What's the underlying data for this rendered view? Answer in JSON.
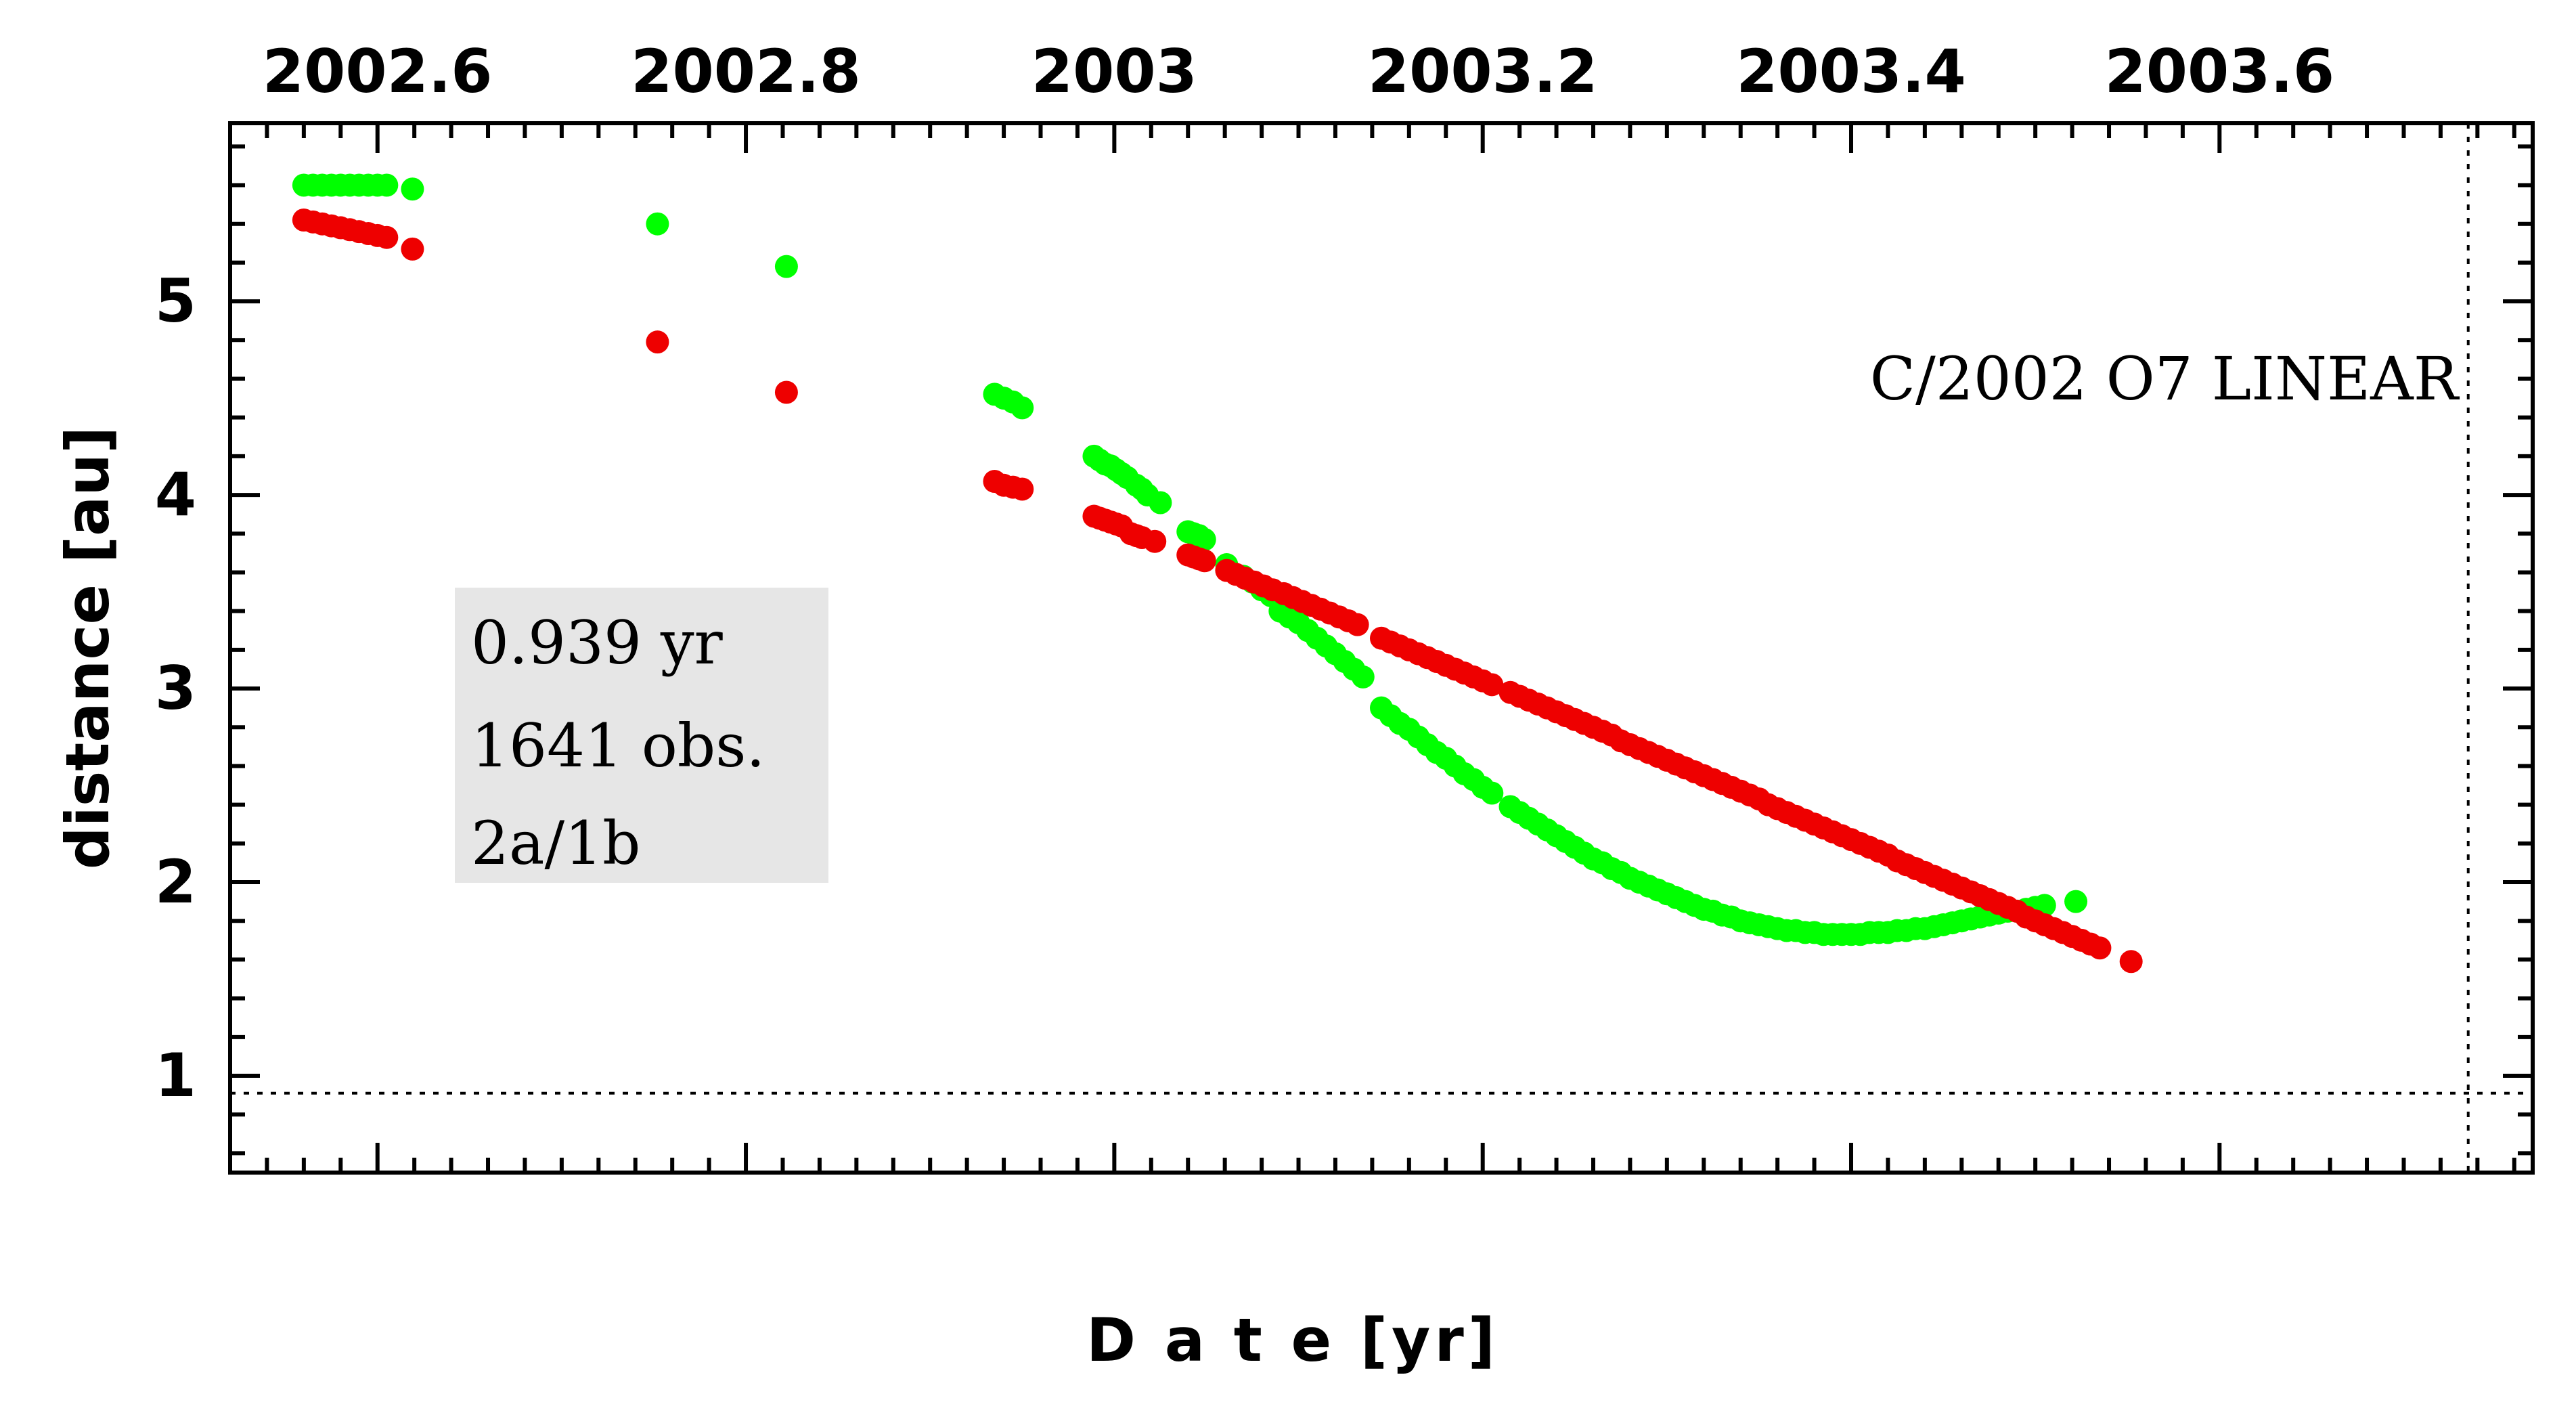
{
  "chart_data": {
    "type": "scatter",
    "title": "C/2002 O7 LINEAR",
    "xlabel": "D a t e [yr]",
    "ylabel": "distance [au]",
    "xlim": [
      2002.52,
      2003.77
    ],
    "ylim": [
      0.5,
      5.92
    ],
    "x_ticks": [
      "2002.6",
      "2002.8",
      "2003",
      "2003.2",
      "2003.4",
      "2003.6"
    ],
    "y_ticks": [
      "1",
      "2",
      "3",
      "4",
      "5"
    ],
    "x_tick_values": [
      2002.6,
      2002.8,
      2003.0,
      2003.2,
      2003.4,
      2003.6
    ],
    "y_tick_values": [
      1,
      2,
      3,
      4,
      5
    ],
    "reference_lines": {
      "horizontal_y": 0.91,
      "vertical_x": 2003.735
    },
    "info_box": {
      "lines": [
        "0.939 yr",
        "1641 obs.",
        "2a/1b"
      ]
    },
    "colors": {
      "green": "#00ff00",
      "red": "#ee0000",
      "box": "#e6e6e6"
    },
    "series": [
      {
        "name": "green",
        "points": [
          [
            2002.56,
            5.6
          ],
          [
            2002.565,
            5.6
          ],
          [
            2002.57,
            5.6
          ],
          [
            2002.575,
            5.6
          ],
          [
            2002.58,
            5.6
          ],
          [
            2002.585,
            5.6
          ],
          [
            2002.59,
            5.6
          ],
          [
            2002.595,
            5.6
          ],
          [
            2002.6,
            5.6
          ],
          [
            2002.605,
            5.6
          ],
          [
            2002.619,
            5.58
          ],
          [
            2002.752,
            5.4
          ],
          [
            2002.822,
            5.18
          ],
          [
            2002.935,
            4.52
          ],
          [
            2002.94,
            4.5
          ],
          [
            2002.945,
            4.48
          ],
          [
            2002.95,
            4.45
          ],
          [
            2002.989,
            4.2
          ],
          [
            2002.992,
            4.18
          ],
          [
            2002.995,
            4.16
          ],
          [
            2002.998,
            4.15
          ],
          [
            2003.001,
            4.13
          ],
          [
            2003.004,
            4.11
          ],
          [
            2003.007,
            4.09
          ],
          [
            2003.012,
            4.05
          ],
          [
            2003.015,
            4.03
          ],
          [
            2003.018,
            4.0
          ],
          [
            2003.025,
            3.96
          ],
          [
            2003.04,
            3.81
          ],
          [
            2003.043,
            3.8
          ],
          [
            2003.046,
            3.79
          ],
          [
            2003.049,
            3.77
          ],
          [
            2003.061,
            3.64
          ],
          [
            2003.07,
            3.58
          ],
          [
            2003.075,
            3.55
          ],
          [
            2003.08,
            3.51
          ],
          [
            2003.085,
            3.48
          ],
          [
            2003.09,
            3.4
          ],
          [
            2003.095,
            3.37
          ],
          [
            2003.1,
            3.34
          ],
          [
            2003.105,
            3.3
          ],
          [
            2003.11,
            3.26
          ],
          [
            2003.115,
            3.22
          ],
          [
            2003.12,
            3.18
          ],
          [
            2003.125,
            3.14
          ],
          [
            2003.13,
            3.1
          ],
          [
            2003.135,
            3.06
          ],
          [
            2003.145,
            2.9
          ],
          [
            2003.15,
            2.86
          ],
          [
            2003.155,
            2.82
          ],
          [
            2003.16,
            2.79
          ],
          [
            2003.165,
            2.75
          ],
          [
            2003.17,
            2.71
          ],
          [
            2003.175,
            2.67
          ],
          [
            2003.18,
            2.64
          ],
          [
            2003.185,
            2.6
          ],
          [
            2003.19,
            2.56
          ],
          [
            2003.195,
            2.53
          ],
          [
            2003.2,
            2.49
          ],
          [
            2003.205,
            2.46
          ],
          [
            2003.215,
            2.39
          ],
          [
            2003.22,
            2.36
          ],
          [
            2003.225,
            2.33
          ],
          [
            2003.23,
            2.3
          ],
          [
            2003.235,
            2.27
          ],
          [
            2003.24,
            2.24
          ],
          [
            2003.245,
            2.21
          ],
          [
            2003.25,
            2.18
          ],
          [
            2003.255,
            2.15
          ],
          [
            2003.26,
            2.12
          ],
          [
            2003.265,
            2.1
          ],
          [
            2003.27,
            2.07
          ],
          [
            2003.275,
            2.05
          ],
          [
            2003.28,
            2.02
          ],
          [
            2003.285,
            2.0
          ],
          [
            2003.29,
            1.98
          ],
          [
            2003.295,
            1.96
          ],
          [
            2003.3,
            1.94
          ],
          [
            2003.305,
            1.92
          ],
          [
            2003.31,
            1.9
          ],
          [
            2003.315,
            1.88
          ],
          [
            2003.32,
            1.86
          ],
          [
            2003.325,
            1.85
          ],
          [
            2003.33,
            1.83
          ],
          [
            2003.335,
            1.82
          ],
          [
            2003.34,
            1.8
          ],
          [
            2003.345,
            1.79
          ],
          [
            2003.35,
            1.78
          ],
          [
            2003.355,
            1.77
          ],
          [
            2003.36,
            1.76
          ],
          [
            2003.365,
            1.75
          ],
          [
            2003.37,
            1.75
          ],
          [
            2003.375,
            1.74
          ],
          [
            2003.38,
            1.74
          ],
          [
            2003.385,
            1.73
          ],
          [
            2003.39,
            1.73
          ],
          [
            2003.395,
            1.73
          ],
          [
            2003.4,
            1.73
          ],
          [
            2003.405,
            1.73
          ],
          [
            2003.41,
            1.74
          ],
          [
            2003.415,
            1.74
          ],
          [
            2003.42,
            1.74
          ],
          [
            2003.425,
            1.75
          ],
          [
            2003.43,
            1.75
          ],
          [
            2003.435,
            1.76
          ],
          [
            2003.44,
            1.76
          ],
          [
            2003.445,
            1.77
          ],
          [
            2003.45,
            1.78
          ],
          [
            2003.455,
            1.79
          ],
          [
            2003.46,
            1.8
          ],
          [
            2003.465,
            1.81
          ],
          [
            2003.47,
            1.82
          ],
          [
            2003.475,
            1.83
          ],
          [
            2003.48,
            1.84
          ],
          [
            2003.485,
            1.85
          ],
          [
            2003.49,
            1.85
          ],
          [
            2003.495,
            1.86
          ],
          [
            2003.5,
            1.87
          ],
          [
            2003.505,
            1.88
          ],
          [
            2003.522,
            1.9
          ]
        ]
      },
      {
        "name": "red",
        "points": [
          [
            2002.56,
            5.42
          ],
          [
            2002.565,
            5.41
          ],
          [
            2002.57,
            5.4
          ],
          [
            2002.575,
            5.39
          ],
          [
            2002.58,
            5.38
          ],
          [
            2002.585,
            5.37
          ],
          [
            2002.59,
            5.36
          ],
          [
            2002.595,
            5.35
          ],
          [
            2002.6,
            5.34
          ],
          [
            2002.605,
            5.33
          ],
          [
            2002.619,
            5.27
          ],
          [
            2002.752,
            4.79
          ],
          [
            2002.822,
            4.53
          ],
          [
            2002.935,
            4.07
          ],
          [
            2002.94,
            4.05
          ],
          [
            2002.945,
            4.04
          ],
          [
            2002.95,
            4.03
          ],
          [
            2002.989,
            3.89
          ],
          [
            2002.992,
            3.88
          ],
          [
            2002.995,
            3.87
          ],
          [
            2002.998,
            3.86
          ],
          [
            2003.001,
            3.85
          ],
          [
            2003.004,
            3.84
          ],
          [
            2003.009,
            3.8
          ],
          [
            2003.012,
            3.79
          ],
          [
            2003.015,
            3.78
          ],
          [
            2003.022,
            3.76
          ],
          [
            2003.04,
            3.69
          ],
          [
            2003.043,
            3.68
          ],
          [
            2003.046,
            3.67
          ],
          [
            2003.049,
            3.66
          ],
          [
            2003.061,
            3.61
          ],
          [
            2003.066,
            3.59
          ],
          [
            2003.071,
            3.57
          ],
          [
            2003.076,
            3.55
          ],
          [
            2003.081,
            3.53
          ],
          [
            2003.086,
            3.51
          ],
          [
            2003.092,
            3.49
          ],
          [
            2003.097,
            3.47
          ],
          [
            2003.102,
            3.45
          ],
          [
            2003.107,
            3.43
          ],
          [
            2003.112,
            3.41
          ],
          [
            2003.117,
            3.39
          ],
          [
            2003.122,
            3.37
          ],
          [
            2003.127,
            3.35
          ],
          [
            2003.132,
            3.33
          ],
          [
            2003.145,
            3.26
          ],
          [
            2003.15,
            3.24
          ],
          [
            2003.155,
            3.22
          ],
          [
            2003.16,
            3.2
          ],
          [
            2003.165,
            3.18
          ],
          [
            2003.17,
            3.16
          ],
          [
            2003.175,
            3.14
          ],
          [
            2003.18,
            3.12
          ],
          [
            2003.185,
            3.1
          ],
          [
            2003.19,
            3.08
          ],
          [
            2003.195,
            3.06
          ],
          [
            2003.2,
            3.04
          ],
          [
            2003.205,
            3.02
          ],
          [
            2003.215,
            2.98
          ],
          [
            2003.22,
            2.96
          ],
          [
            2003.225,
            2.94
          ],
          [
            2003.23,
            2.92
          ],
          [
            2003.235,
            2.9
          ],
          [
            2003.24,
            2.88
          ],
          [
            2003.245,
            2.86
          ],
          [
            2003.25,
            2.84
          ],
          [
            2003.255,
            2.82
          ],
          [
            2003.26,
            2.8
          ],
          [
            2003.265,
            2.78
          ],
          [
            2003.27,
            2.76
          ],
          [
            2003.275,
            2.73
          ],
          [
            2003.28,
            2.71
          ],
          [
            2003.285,
            2.69
          ],
          [
            2003.29,
            2.67
          ],
          [
            2003.295,
            2.65
          ],
          [
            2003.3,
            2.63
          ],
          [
            2003.305,
            2.61
          ],
          [
            2003.31,
            2.59
          ],
          [
            2003.315,
            2.57
          ],
          [
            2003.32,
            2.55
          ],
          [
            2003.325,
            2.53
          ],
          [
            2003.33,
            2.51
          ],
          [
            2003.335,
            2.49
          ],
          [
            2003.34,
            2.47
          ],
          [
            2003.345,
            2.45
          ],
          [
            2003.35,
            2.43
          ],
          [
            2003.355,
            2.4
          ],
          [
            2003.36,
            2.38
          ],
          [
            2003.365,
            2.36
          ],
          [
            2003.37,
            2.34
          ],
          [
            2003.375,
            2.32
          ],
          [
            2003.38,
            2.3
          ],
          [
            2003.385,
            2.28
          ],
          [
            2003.39,
            2.26
          ],
          [
            2003.395,
            2.24
          ],
          [
            2003.4,
            2.22
          ],
          [
            2003.405,
            2.2
          ],
          [
            2003.41,
            2.18
          ],
          [
            2003.415,
            2.16
          ],
          [
            2003.42,
            2.14
          ],
          [
            2003.425,
            2.11
          ],
          [
            2003.43,
            2.09
          ],
          [
            2003.435,
            2.07
          ],
          [
            2003.44,
            2.05
          ],
          [
            2003.445,
            2.03
          ],
          [
            2003.45,
            2.01
          ],
          [
            2003.455,
            1.99
          ],
          [
            2003.46,
            1.97
          ],
          [
            2003.465,
            1.95
          ],
          [
            2003.47,
            1.93
          ],
          [
            2003.475,
            1.91
          ],
          [
            2003.48,
            1.89
          ],
          [
            2003.485,
            1.87
          ],
          [
            2003.49,
            1.85
          ],
          [
            2003.495,
            1.82
          ],
          [
            2003.5,
            1.8
          ],
          [
            2003.505,
            1.78
          ],
          [
            2003.51,
            1.76
          ],
          [
            2003.515,
            1.74
          ],
          [
            2003.52,
            1.72
          ],
          [
            2003.525,
            1.7
          ],
          [
            2003.53,
            1.68
          ],
          [
            2003.535,
            1.66
          ],
          [
            2003.552,
            1.59
          ]
        ]
      }
    ]
  }
}
